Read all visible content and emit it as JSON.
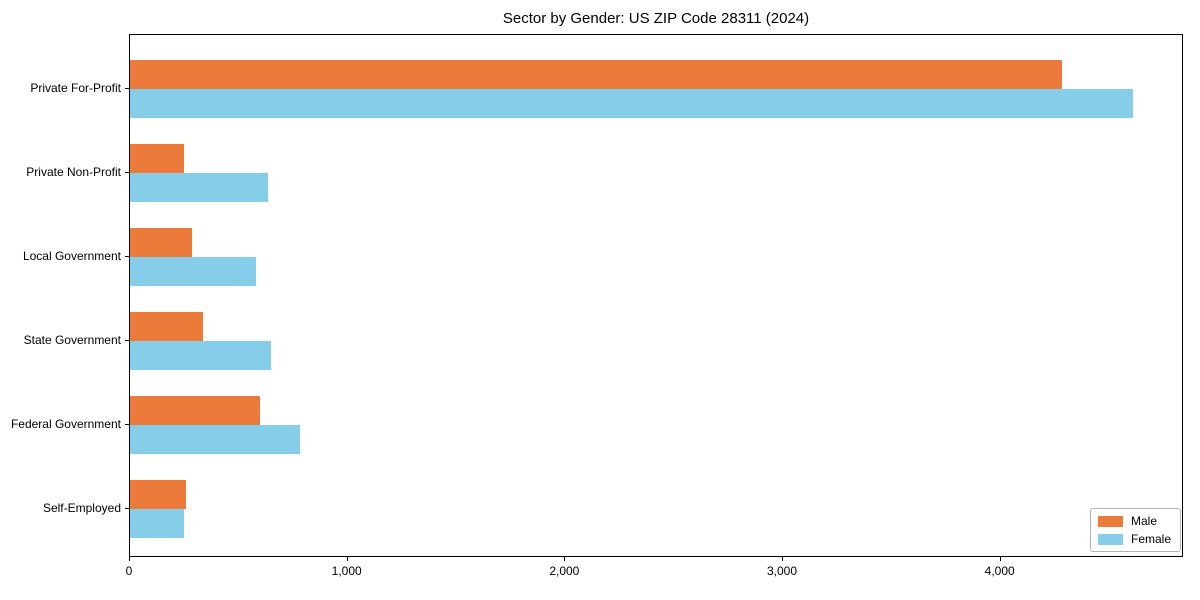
{
  "title": "Sector by Gender: US ZIP Code 28311 (2024)",
  "colors": {
    "male": "#eb7a3b",
    "female": "#85cde9",
    "axis": "#000000",
    "background": "#ffffff",
    "legend_border": "#b3b3b3"
  },
  "legend": {
    "items": [
      {
        "label": "Male",
        "color": "#eb7a3b"
      },
      {
        "label": "Female",
        "color": "#85cde9"
      }
    ]
  },
  "chart_data": {
    "type": "bar",
    "orientation": "horizontal",
    "title": "Sector by Gender: US ZIP Code 28311 (2024)",
    "categories": [
      "Private For-Profit",
      "Private Non-Profit",
      "Local Government",
      "State Government",
      "Federal Government",
      "Self-Employed"
    ],
    "series": [
      {
        "name": "Male",
        "color": "#eb7a3b",
        "values": [
          4280,
          248,
          283,
          334,
          596,
          256
        ]
      },
      {
        "name": "Female",
        "color": "#85cde9",
        "values": [
          4610,
          632,
          577,
          650,
          783,
          247
        ]
      }
    ],
    "xlabel": "",
    "ylabel": "",
    "xlim": [
      0,
      4833
    ],
    "x_ticks": [
      0,
      1000,
      2000,
      3000,
      4000
    ],
    "x_tick_labels": [
      "0",
      "1,000",
      "2,000",
      "3,000",
      "4,000"
    ],
    "grid": false,
    "legend_position": "lower right"
  }
}
